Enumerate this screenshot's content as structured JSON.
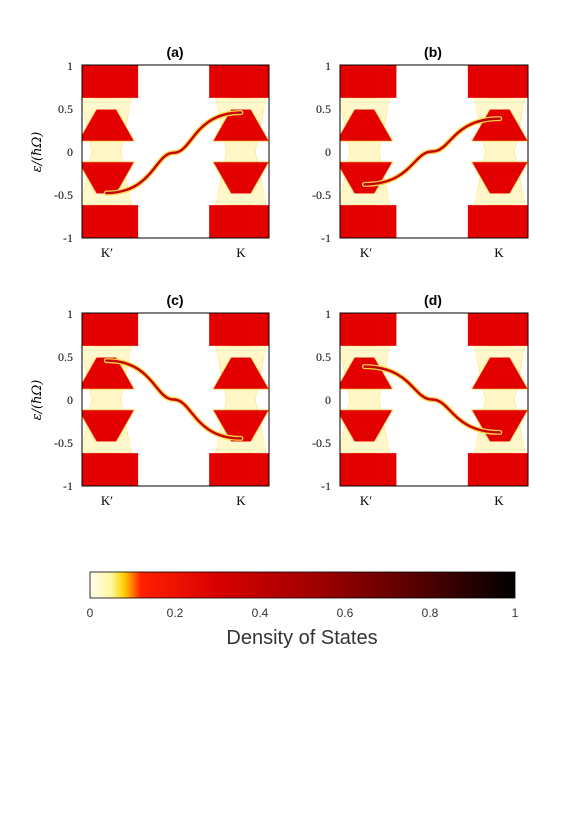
{
  "chart_data": [
    {
      "type": "heatmap",
      "title": "(a)",
      "ylabel": "ε/(ℏΩ)",
      "ylim": [
        -1,
        1
      ],
      "yticks": [
        "1",
        "0.5",
        "0",
        "-0.5",
        "-1"
      ],
      "xtick_labels": [
        "K′",
        "K"
      ],
      "edge_state": {
        "from_valley": "K′",
        "to_valley": "K",
        "start_energy": -0.48,
        "end_energy": 0.45,
        "slope": "positive"
      }
    },
    {
      "type": "heatmap",
      "title": "(b)",
      "ylim": [
        -1,
        1
      ],
      "yticks": [
        "1",
        "0.5",
        "0",
        "-0.5",
        "-1"
      ],
      "xtick_labels": [
        "K′",
        "K"
      ],
      "edge_state": {
        "from_valley": "K′",
        "to_valley": "K",
        "start_energy": -0.38,
        "end_energy": 0.38,
        "slope": "positive"
      }
    },
    {
      "type": "heatmap",
      "title": "(c)",
      "ylabel": "ε/(ℏΩ)",
      "ylim": [
        -1,
        1
      ],
      "yticks": [
        "1",
        "0.5",
        "0",
        "-0.5",
        "-1"
      ],
      "xtick_labels": [
        "K′",
        "K"
      ],
      "edge_state": {
        "from_valley": "K′",
        "to_valley": "K",
        "start_energy": 0.45,
        "end_energy": -0.45,
        "slope": "negative"
      }
    },
    {
      "type": "heatmap",
      "title": "(d)",
      "ylim": [
        -1,
        1
      ],
      "yticks": [
        "1",
        "0.5",
        "0",
        "-0.5",
        "-1"
      ],
      "xtick_labels": [
        "K′",
        "K"
      ],
      "edge_state": {
        "from_valley": "K′",
        "to_valley": "K",
        "start_energy": 0.38,
        "end_energy": -0.38,
        "slope": "negative"
      }
    }
  ],
  "colorbar": {
    "label": "Density of States",
    "range": [
      0,
      1
    ],
    "ticks": [
      "0",
      "0.2",
      "0.4",
      "0.6",
      "0.8",
      "1"
    ],
    "colors": [
      "#fffff0",
      "#ffff33",
      "#ff0000",
      "#c80000",
      "#7a0000",
      "#2a0000",
      "#000000"
    ]
  },
  "colors": {
    "band": "#e30000",
    "band_light": "#fff7c8",
    "edge_state": "#c40000",
    "edge_glow": "#ffd34a",
    "background": "#ffffff"
  }
}
